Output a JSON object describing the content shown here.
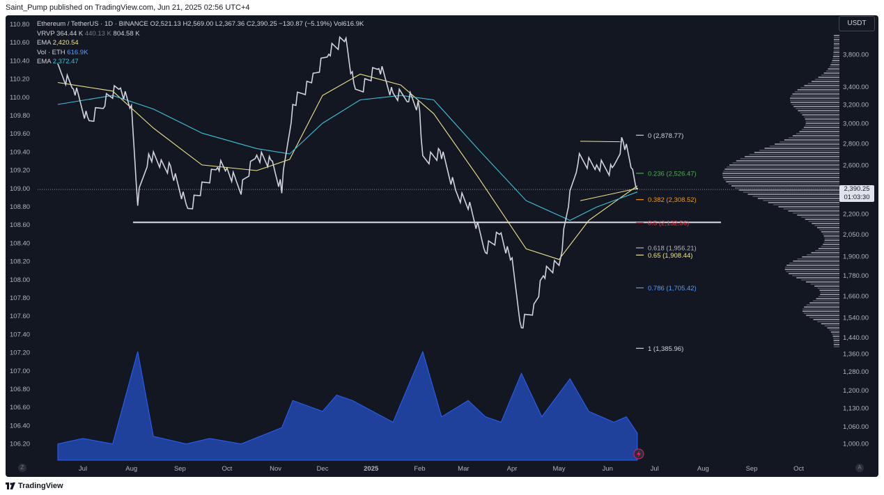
{
  "header": {
    "published_text": "Saint_Pump published on TradingView.com, Jun 21, 2025 02:56 UTC+4"
  },
  "footer": {
    "brand": "TradingView",
    "logo_icon": "tradingview-logo-icon"
  },
  "legend": {
    "symbol": "Ethereum / TetherUS · 1D · BINANCE",
    "ohlc": "O2,521.13 H2,569.00 L2,367.36 C2,390.25 −130.87 (−5.19%) Vol616.9K",
    "vrvp_label": "VRVP",
    "vrvp_values": [
      "364.44 K",
      "440.13 K",
      "804.58 K"
    ],
    "ema1_label": "EMA",
    "ema1_value": "2,420.54",
    "vol_label": "Vol · ETH",
    "vol_value": "616.9K",
    "ema2_label": "EMA",
    "ema2_value": "2,372.47"
  },
  "axis": {
    "currency": "USDT",
    "last_price": "2,390.25",
    "countdown": "01:03:30"
  },
  "buttons": {
    "zoom_left": "Z",
    "auto_right": "A"
  },
  "colors": {
    "background": "#131722",
    "candle": "#d1d4dc",
    "ema1": "#f0e68c",
    "ema2": "#3ec3dc",
    "volume": "#2962ff",
    "fib_0": "#d1d4dc",
    "fib_0236": "#4caf50",
    "fib_0382": "#ff9800",
    "fib_05": "#f23645",
    "fib_0618": "#b2b5be",
    "fib_065": "#f0e68c",
    "fib_0786": "#5b9cf6",
    "fib_1": "#d1d4dc"
  },
  "chart_data": {
    "type": "line",
    "title": "Ethereum / TetherUS · 1D · BINANCE",
    "x_ticks": [
      "Jul",
      "Aug",
      "Sep",
      "Oct",
      "Nov",
      "Dec",
      "2025",
      "Feb",
      "Mar",
      "Apr",
      "May",
      "Jun",
      "Jul",
      "Aug",
      "Sep",
      "Oct"
    ],
    "left_axis_ticks": [
      "110.80",
      "110.60",
      "110.40",
      "110.20",
      "110.00",
      "109.80",
      "109.60",
      "109.40",
      "109.20",
      "109.00",
      "108.80",
      "108.60",
      "108.40",
      "108.20",
      "108.00",
      "107.80",
      "107.60",
      "107.40",
      "107.20",
      "107.00",
      "106.80",
      "106.60",
      "106.40",
      "106.20"
    ],
    "y_ticks": [
      3800,
      3400,
      3200,
      3000,
      2800,
      2600,
      2400,
      2200,
      2050,
      1900,
      1780,
      1660,
      1540,
      1440,
      1360,
      1280,
      1200,
      1130,
      1060,
      1000
    ],
    "y_tick_labels": [
      "3,800.00",
      "3,400.00",
      "3,200.00",
      "3,000.00",
      "2,800.00",
      "2,600.00",
      "2,400.00",
      "2,200.00",
      "2,050.00",
      "1,900.00",
      "1,780.00",
      "1,660.00",
      "1,540.00",
      "1,440.00",
      "1,360.00",
      "1,280.00",
      "1,200.00",
      "1,130.00",
      "1,060.00",
      "1,000.00"
    ],
    "y_scale": "log",
    "fib_levels": [
      {
        "ratio": "0",
        "price": 2878.77,
        "label": "0 (2,878.77)",
        "color": "fib_0"
      },
      {
        "ratio": "0.236",
        "price": 2526.47,
        "label": "0.236 (2,526.47)",
        "color": "fib_0236"
      },
      {
        "ratio": "0.382",
        "price": 2308.52,
        "label": "0.382 (2,308.52)",
        "color": "fib_0382"
      },
      {
        "ratio": "0.5",
        "price": 2132.56,
        "label": "0.5 (2,132.56)",
        "color": "fib_05"
      },
      {
        "ratio": "0.618",
        "price": 1956.21,
        "label": "0.618 (1,956.21)",
        "color": "fib_0618"
      },
      {
        "ratio": "0.65",
        "price": 1908.44,
        "label": "0.65 (1,908.44)",
        "color": "fib_065"
      },
      {
        "ratio": "0.786",
        "price": 1705.42,
        "label": "0.786 (1,705.42)",
        "color": "fib_0786"
      },
      {
        "ratio": "1",
        "price": 1385.96,
        "label": "1 (1,385.96)",
        "color": "fib_1"
      }
    ],
    "support_price": 2135,
    "price_series": {
      "name": "ETHUSDT",
      "points": [
        [
          "2024-06-15",
          3600
        ],
        [
          "2024-06-25",
          3400
        ],
        [
          "2024-07-05",
          3000
        ],
        [
          "2024-07-15",
          3250
        ],
        [
          "2024-07-25",
          3400
        ],
        [
          "2024-08-01",
          3150
        ],
        [
          "2024-08-05",
          2300
        ],
        [
          "2024-08-12",
          2700
        ],
        [
          "2024-08-20",
          2600
        ],
        [
          "2024-08-27",
          2550
        ],
        [
          "2024-09-06",
          2230
        ],
        [
          "2024-09-15",
          2400
        ],
        [
          "2024-09-25",
          2600
        ],
        [
          "2024-10-01",
          2550
        ],
        [
          "2024-10-10",
          2400
        ],
        [
          "2024-10-20",
          2700
        ],
        [
          "2024-10-30",
          2600
        ],
        [
          "2024-11-05",
          2400
        ],
        [
          "2024-11-12",
          3200
        ],
        [
          "2024-11-25",
          3500
        ],
        [
          "2024-12-05",
          3850
        ],
        [
          "2024-12-16",
          4000
        ],
        [
          "2024-12-22",
          3300
        ],
        [
          "2025-01-06",
          3650
        ],
        [
          "2025-01-15",
          3300
        ],
        [
          "2025-01-25",
          3300
        ],
        [
          "2025-02-01",
          3150
        ],
        [
          "2025-02-03",
          2650
        ],
        [
          "2025-02-15",
          2700
        ],
        [
          "2025-02-25",
          2350
        ],
        [
          "2025-03-05",
          2250
        ],
        [
          "2025-03-15",
          1950
        ],
        [
          "2025-03-25",
          2050
        ],
        [
          "2025-04-01",
          1850
        ],
        [
          "2025-04-07",
          1500
        ],
        [
          "2025-04-15",
          1600
        ],
        [
          "2025-04-22",
          1800
        ],
        [
          "2025-05-01",
          1850
        ],
        [
          "2025-05-08",
          2350
        ],
        [
          "2025-05-13",
          2650
        ],
        [
          "2025-05-25",
          2600
        ],
        [
          "2025-06-05",
          2550
        ],
        [
          "2025-06-11",
          2850
        ],
        [
          "2025-06-17",
          2550
        ],
        [
          "2025-06-20",
          2390
        ]
      ]
    },
    "ema_series": [
      {
        "name": "EMA",
        "value_label": "2,420.54",
        "color": "ema1",
        "points": [
          [
            "2024-06-15",
            3450
          ],
          [
            "2024-07-20",
            3350
          ],
          [
            "2024-08-15",
            2950
          ],
          [
            "2024-09-15",
            2600
          ],
          [
            "2024-10-20",
            2550
          ],
          [
            "2024-11-10",
            2650
          ],
          [
            "2024-12-01",
            3300
          ],
          [
            "2024-12-25",
            3550
          ],
          [
            "2025-01-20",
            3420
          ],
          [
            "2025-02-10",
            3100
          ],
          [
            "2025-03-10",
            2500
          ],
          [
            "2025-04-10",
            1950
          ],
          [
            "2025-05-01",
            1880
          ],
          [
            "2025-05-20",
            2150
          ],
          [
            "2025-06-20",
            2420
          ]
        ]
      },
      {
        "name": "EMA",
        "value_label": "2,372.47",
        "color": "ema2",
        "points": [
          [
            "2024-06-15",
            3200
          ],
          [
            "2024-07-20",
            3300
          ],
          [
            "2024-08-15",
            3150
          ],
          [
            "2024-09-15",
            2900
          ],
          [
            "2024-10-20",
            2750
          ],
          [
            "2024-11-10",
            2700
          ],
          [
            "2024-12-01",
            3000
          ],
          [
            "2024-12-25",
            3250
          ],
          [
            "2025-01-20",
            3300
          ],
          [
            "2025-02-10",
            3250
          ],
          [
            "2025-03-10",
            2750
          ],
          [
            "2025-04-10",
            2300
          ],
          [
            "2025-05-08",
            2150
          ],
          [
            "2025-05-25",
            2250
          ],
          [
            "2025-06-20",
            2370
          ]
        ]
      }
    ],
    "volume_series": {
      "name": "Vol · ETH",
      "points": [
        [
          "2024-06-15",
          0.15
        ],
        [
          "2024-07-01",
          0.2
        ],
        [
          "2024-07-20",
          0.15
        ],
        [
          "2024-08-05",
          1.0
        ],
        [
          "2024-08-15",
          0.22
        ],
        [
          "2024-09-05",
          0.15
        ],
        [
          "2024-09-20",
          0.2
        ],
        [
          "2024-10-10",
          0.15
        ],
        [
          "2024-11-05",
          0.3
        ],
        [
          "2024-11-12",
          0.55
        ],
        [
          "2024-12-01",
          0.45
        ],
        [
          "2024-12-10",
          0.6
        ],
        [
          "2024-12-20",
          0.55
        ],
        [
          "2025-01-15",
          0.35
        ],
        [
          "2025-02-03",
          1.0
        ],
        [
          "2025-02-15",
          0.4
        ],
        [
          "2025-03-04",
          0.55
        ],
        [
          "2025-03-15",
          0.4
        ],
        [
          "2025-03-25",
          0.35
        ],
        [
          "2025-04-07",
          0.8
        ],
        [
          "2025-04-20",
          0.4
        ],
        [
          "2025-05-08",
          0.75
        ],
        [
          "2025-05-20",
          0.45
        ],
        [
          "2025-06-05",
          0.35
        ],
        [
          "2025-06-13",
          0.4
        ],
        [
          "2025-06-20",
          0.25
        ]
      ]
    },
    "grid": false,
    "legend": "top-left"
  }
}
